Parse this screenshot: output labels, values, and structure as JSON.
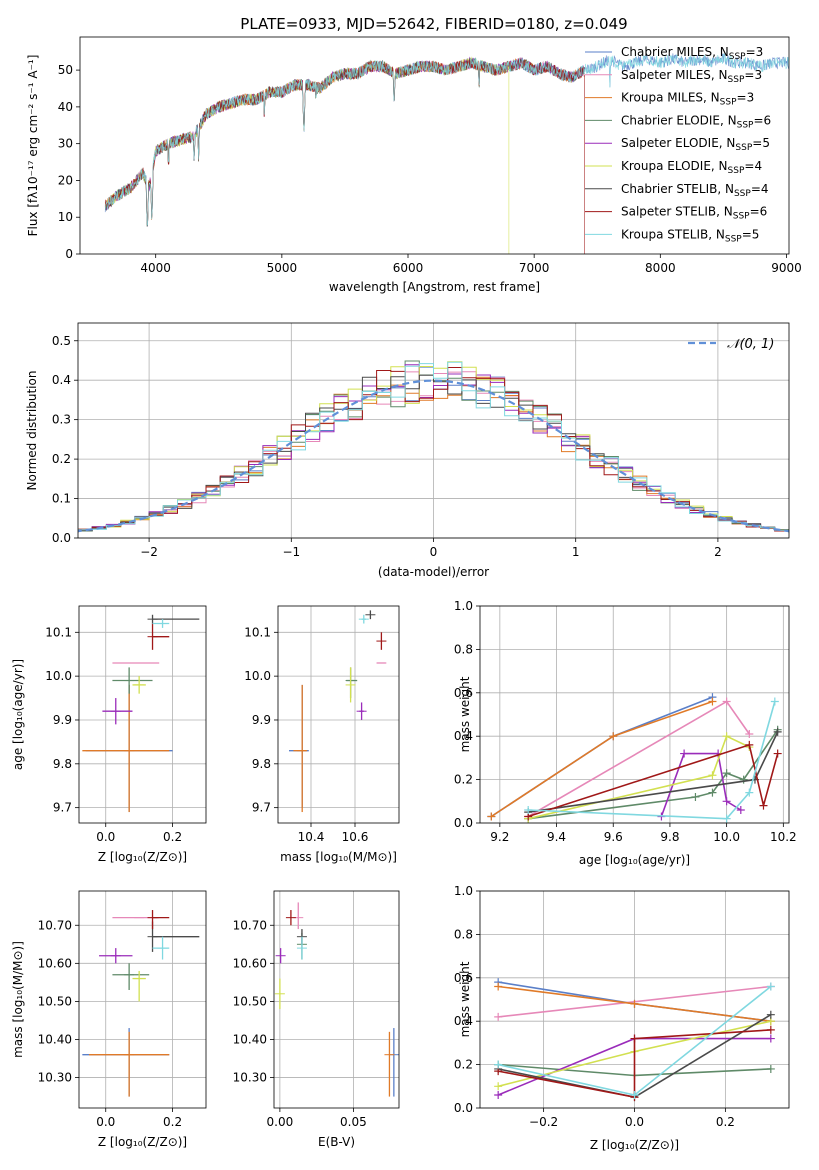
{
  "figure_title": "PLATE=0933, MJD=52642, FIBERID=0180, z=0.049",
  "series": [
    {
      "name": "Chabrier MILES, N",
      "sub": "SSP",
      "suffix": "=3",
      "color": "#5a7fc8"
    },
    {
      "name": "Salpeter MILES, N",
      "sub": "SSP",
      "suffix": "=3",
      "color": "#e688b8"
    },
    {
      "name": "Kroupa MILES, N",
      "sub": "SSP",
      "suffix": "=3",
      "color": "#e07a28"
    },
    {
      "name": "Chabrier ELODIE, N",
      "sub": "SSP",
      "suffix": "=6",
      "color": "#5f8a68"
    },
    {
      "name": "Salpeter ELODIE, N",
      "sub": "SSP",
      "suffix": "=5",
      "color": "#9a2cba"
    },
    {
      "name": "Kroupa ELODIE, N",
      "sub": "SSP",
      "suffix": "=4",
      "color": "#d2e050"
    },
    {
      "name": "Chabrier STELIB, N",
      "sub": "SSP",
      "suffix": "=4",
      "color": "#4a4a4a"
    },
    {
      "name": "Salpeter STELIB, N",
      "sub": "SSP",
      "suffix": "=6",
      "color": "#a01818"
    },
    {
      "name": "Kroupa STELIB, N",
      "sub": "SSP",
      "suffix": "=5",
      "color": "#80d8e0"
    }
  ],
  "chart_data": [
    {
      "id": "spectrum",
      "type": "line",
      "xlabel": "wavelength [Angstrom, rest frame]",
      "ylabel": "Flux [fλ10⁻¹⁷ erg cm⁻² s⁻¹ A⁻¹]",
      "xlim": [
        3400,
        9020
      ],
      "ylim": [
        0,
        59
      ],
      "xticks": [
        4000,
        5000,
        6000,
        7000,
        8000,
        9000
      ],
      "yticks": [
        0,
        10,
        20,
        30,
        40,
        50
      ],
      "continuum": [
        [
          3600,
          13
        ],
        [
          3700,
          16
        ],
        [
          3800,
          18
        ],
        [
          3900,
          22
        ],
        [
          3950,
          18
        ],
        [
          4000,
          28
        ],
        [
          4100,
          30
        ],
        [
          4200,
          31
        ],
        [
          4300,
          32
        ],
        [
          4400,
          38
        ],
        [
          4500,
          40
        ],
        [
          4600,
          41
        ],
        [
          4700,
          42
        ],
        [
          4800,
          42
        ],
        [
          4900,
          44
        ],
        [
          5000,
          44
        ],
        [
          5100,
          46
        ],
        [
          5200,
          46
        ],
        [
          5300,
          45
        ],
        [
          5400,
          48
        ],
        [
          5500,
          49
        ],
        [
          5600,
          49
        ],
        [
          5700,
          51
        ],
        [
          5800,
          51
        ],
        [
          5900,
          49
        ],
        [
          6000,
          50
        ],
        [
          6100,
          51
        ],
        [
          6200,
          51
        ],
        [
          6300,
          50
        ],
        [
          6400,
          51
        ],
        [
          6500,
          52
        ],
        [
          6600,
          51
        ],
        [
          6700,
          50
        ],
        [
          6800,
          51
        ],
        [
          6900,
          52
        ],
        [
          7000,
          50
        ],
        [
          7100,
          51
        ],
        [
          7200,
          49
        ],
        [
          7300,
          48
        ],
        [
          7400,
          50
        ],
        [
          7500,
          51
        ],
        [
          7600,
          53
        ],
        [
          7700,
          51
        ],
        [
          7800,
          52
        ],
        [
          7900,
          53
        ],
        [
          8000,
          52
        ],
        [
          8100,
          53
        ],
        [
          8200,
          52
        ],
        [
          8300,
          53
        ],
        [
          8400,
          52
        ],
        [
          8500,
          53
        ],
        [
          8600,
          52
        ],
        [
          8700,
          52
        ],
        [
          8800,
          51
        ],
        [
          8900,
          52
        ]
      ],
      "absorption_lines": [
        [
          3934,
          5
        ],
        [
          3969,
          8
        ],
        [
          4102,
          22
        ],
        [
          4305,
          24
        ],
        [
          4340,
          25
        ],
        [
          4861,
          36
        ],
        [
          5175,
          32
        ],
        [
          5270,
          40
        ],
        [
          5890,
          39
        ],
        [
          6563,
          44
        ],
        [
          7600,
          45
        ]
      ]
    },
    {
      "id": "residual_hist",
      "type": "bar",
      "xlabel": "(data-model)/error",
      "ylabel": "Normed distribution",
      "xlim": [
        -2.5,
        2.5
      ],
      "ylim": [
        0,
        0.545
      ],
      "xticks": [
        -2,
        -1,
        0,
        1,
        2
      ],
      "yticks": [
        0.0,
        0.1,
        0.2,
        0.3,
        0.4,
        0.5
      ],
      "bin_width": 0.1,
      "reference": {
        "name": "𝒩(0, 1)",
        "color": "#6090d8",
        "mean": 0,
        "sigma": 1
      }
    },
    {
      "id": "age_vs_Z",
      "type": "scatter",
      "xlabel": "Z [log₁₀(Z/Z⊙)]",
      "ylabel": "age  [log₁₀(age/yr)]",
      "xlim": [
        -0.08,
        0.3
      ],
      "ylim": [
        9.665,
        10.16
      ],
      "xticks": [
        0.0,
        0.2
      ],
      "yticks": [
        9.7,
        9.8,
        9.9,
        10.0,
        10.1
      ],
      "points": [
        {
          "x": 0.07,
          "y": 9.83,
          "xerr": [
            0.13,
            0.13
          ],
          "yerr": [
            0.14,
            0.15
          ],
          "s": 0
        },
        {
          "x": 0.1,
          "y": 10.03,
          "xerr": [
            0.08,
            0.06
          ],
          "yerr": [
            0.0,
            0.0
          ],
          "s": 1
        },
        {
          "x": 0.07,
          "y": 9.83,
          "xerr": [
            0.14,
            0.12
          ],
          "yerr": [
            0.14,
            0.15
          ],
          "s": 2
        },
        {
          "x": 0.07,
          "y": 9.99,
          "xerr": [
            0.05,
            0.07
          ],
          "yerr": [
            0.03,
            0.03
          ],
          "s": 3
        },
        {
          "x": 0.03,
          "y": 9.92,
          "xerr": [
            0.04,
            0.05
          ],
          "yerr": [
            0.03,
            0.03
          ],
          "s": 4
        },
        {
          "x": 0.1,
          "y": 9.98,
          "xerr": [
            0.02,
            0.02
          ],
          "yerr": [
            0.02,
            0.02
          ],
          "s": 5
        },
        {
          "x": 0.14,
          "y": 10.13,
          "xerr": [
            0.0,
            0.14
          ],
          "yerr": [
            0.01,
            0.01
          ],
          "s": 6
        },
        {
          "x": 0.14,
          "y": 10.09,
          "xerr": [
            0.0,
            0.05
          ],
          "yerr": [
            0.03,
            0.03
          ],
          "s": 7
        },
        {
          "x": 0.17,
          "y": 10.12,
          "xerr": [
            0.03,
            0.02
          ],
          "yerr": [
            0.01,
            0.01
          ],
          "s": 8
        }
      ]
    },
    {
      "id": "age_vs_mass",
      "type": "scatter",
      "xlabel": "mass [log₁₀(M/M⊙)]",
      "ylabel": "",
      "xlim": [
        10.25,
        10.8
      ],
      "ylim": [
        9.665,
        10.16
      ],
      "xticks": [
        10.4,
        10.6
      ],
      "yticks": [
        9.7,
        9.8,
        9.9,
        10.0,
        10.1
      ],
      "points": [
        {
          "x": 10.36,
          "y": 9.83,
          "xerr": [
            0.06,
            0.03
          ],
          "yerr": [
            0.13,
            0.15
          ],
          "s": 0
        },
        {
          "x": 10.72,
          "y": 10.03,
          "xerr": [
            0.02,
            0.02
          ],
          "yerr": [
            0.0,
            0.0
          ],
          "s": 1
        },
        {
          "x": 10.36,
          "y": 9.83,
          "xerr": [
            0.04,
            0.02
          ],
          "yerr": [
            0.14,
            0.15
          ],
          "s": 2
        },
        {
          "x": 10.58,
          "y": 9.99,
          "xerr": [
            0.02,
            0.03
          ],
          "yerr": [
            0.04,
            0.03
          ],
          "s": 3
        },
        {
          "x": 10.63,
          "y": 9.92,
          "xerr": [
            0.01,
            0.01
          ],
          "yerr": [
            0.02,
            0.02
          ],
          "s": 4
        },
        {
          "x": 10.58,
          "y": 9.98,
          "xerr": [
            0.0,
            0.0
          ],
          "yerr": [
            0.04,
            0.04
          ],
          "s": 5
        },
        {
          "x": 10.67,
          "y": 10.14,
          "xerr": [
            0.0,
            0.0
          ],
          "yerr": [
            0.01,
            0.01
          ],
          "s": 6
        },
        {
          "x": 10.72,
          "y": 10.08,
          "xerr": [
            0.0,
            0.0
          ],
          "yerr": [
            0.02,
            0.02
          ],
          "s": 7
        },
        {
          "x": 10.64,
          "y": 10.13,
          "xerr": [
            0.01,
            0.01
          ],
          "yerr": [
            0.01,
            0.01
          ],
          "s": 8
        }
      ]
    },
    {
      "id": "massweight_vs_age",
      "type": "line",
      "xlabel": "age  [log₁₀(age/yr)]",
      "ylabel": "mass weight",
      "xlim": [
        9.13,
        10.22
      ],
      "ylim": [
        0,
        1
      ],
      "xticks": [
        9.2,
        9.4,
        9.6,
        9.8,
        10.0,
        10.2
      ],
      "yticks": [
        0.0,
        0.2,
        0.4,
        0.6,
        0.8,
        1.0
      ],
      "lines": [
        {
          "s": 0,
          "x": [
            9.17,
            9.6,
            9.95
          ],
          "y": [
            0.03,
            0.4,
            0.58
          ]
        },
        {
          "s": 1,
          "x": [
            9.3,
            10.0,
            10.08
          ],
          "y": [
            0.03,
            0.56,
            0.41
          ]
        },
        {
          "s": 2,
          "x": [
            9.17,
            9.6,
            9.95
          ],
          "y": [
            0.03,
            0.4,
            0.56
          ]
        },
        {
          "s": 3,
          "x": [
            9.3,
            9.89,
            9.95,
            10.0,
            10.06,
            10.18
          ],
          "y": [
            0.02,
            0.12,
            0.14,
            0.23,
            0.2,
            0.43
          ]
        },
        {
          "s": 4,
          "x": [
            9.77,
            9.85,
            9.97,
            10.0,
            10.05
          ],
          "y": [
            0.03,
            0.32,
            0.32,
            0.1,
            0.06
          ]
        },
        {
          "s": 5,
          "x": [
            9.3,
            9.95,
            10.0,
            10.08
          ],
          "y": [
            0.02,
            0.22,
            0.4,
            0.35
          ]
        },
        {
          "s": 6,
          "x": [
            9.3,
            10.1,
            10.18
          ],
          "y": [
            0.05,
            0.2,
            0.42
          ]
        },
        {
          "s": 7,
          "x": [
            9.3,
            10.08,
            10.13,
            10.18
          ],
          "y": [
            0.03,
            0.36,
            0.08,
            0.32
          ]
        },
        {
          "s": 8,
          "x": [
            9.3,
            10.0,
            10.08,
            10.17
          ],
          "y": [
            0.06,
            0.02,
            0.14,
            0.56
          ]
        }
      ]
    },
    {
      "id": "mass_vs_Z",
      "type": "scatter",
      "xlabel": "Z [log₁₀(Z/Z⊙)]",
      "ylabel": "mass [log₁₀(M/M⊙)]",
      "xlim": [
        -0.08,
        0.3
      ],
      "ylim": [
        10.22,
        10.79
      ],
      "xticks": [
        0.0,
        0.2
      ],
      "yticks": [
        10.3,
        10.4,
        10.5,
        10.6,
        10.7
      ],
      "points": [
        {
          "x": 0.07,
          "y": 10.36,
          "xerr": [
            0.14,
            0.12
          ],
          "yerr": [
            0.11,
            0.07
          ],
          "s": 0
        },
        {
          "x": 0.1,
          "y": 10.72,
          "xerr": [
            0.08,
            0.06
          ],
          "yerr": [
            0.0,
            0.0
          ],
          "s": 1
        },
        {
          "x": 0.07,
          "y": 10.36,
          "xerr": [
            0.12,
            0.12
          ],
          "yerr": [
            0.11,
            0.06
          ],
          "s": 2
        },
        {
          "x": 0.07,
          "y": 10.57,
          "xerr": [
            0.05,
            0.06
          ],
          "yerr": [
            0.04,
            0.03
          ],
          "s": 3
        },
        {
          "x": 0.03,
          "y": 10.62,
          "xerr": [
            0.05,
            0.05
          ],
          "yerr": [
            0.02,
            0.02
          ],
          "s": 4
        },
        {
          "x": 0.1,
          "y": 10.56,
          "xerr": [
            0.02,
            0.02
          ],
          "yerr": [
            0.06,
            0.02
          ],
          "s": 5
        },
        {
          "x": 0.14,
          "y": 10.67,
          "xerr": [
            0.0,
            0.14
          ],
          "yerr": [
            0.04,
            0.04
          ],
          "s": 6
        },
        {
          "x": 0.14,
          "y": 10.72,
          "xerr": [
            0.0,
            0.05
          ],
          "yerr": [
            0.03,
            0.02
          ],
          "s": 7
        },
        {
          "x": 0.17,
          "y": 10.64,
          "xerr": [
            0.03,
            0.02
          ],
          "yerr": [
            0.03,
            0.03
          ],
          "s": 8
        }
      ]
    },
    {
      "id": "mass_vs_ebv",
      "type": "scatter",
      "xlabel": "E(B-V)",
      "ylabel": "",
      "xlim": [
        -0.004,
        0.081
      ],
      "ylim": [
        10.22,
        10.79
      ],
      "xticks": [
        0.0,
        0.05
      ],
      "xticklabels": [
        "0.00",
        "0.05"
      ],
      "yticks": [
        10.3,
        10.4,
        10.5,
        10.6,
        10.7
      ],
      "points": [
        {
          "x": 0.0775,
          "y": 10.36,
          "xerr": [
            0,
            0
          ],
          "yerr": [
            0.11,
            0.07
          ],
          "s": 0
        },
        {
          "x": 0.0125,
          "y": 10.72,
          "xerr": [
            0,
            0
          ],
          "yerr": [
            0.03,
            0.04
          ],
          "s": 1
        },
        {
          "x": 0.0745,
          "y": 10.36,
          "xerr": [
            0,
            0
          ],
          "yerr": [
            0.11,
            0.06
          ],
          "s": 2
        },
        {
          "x": 0.015,
          "y": 10.65,
          "xerr": [
            0,
            0
          ],
          "yerr": [
            0.04,
            0.03
          ],
          "s": 3
        },
        {
          "x": 0.0005,
          "y": 10.62,
          "xerr": [
            0,
            0
          ],
          "yerr": [
            0.02,
            0.02
          ],
          "s": 4
        },
        {
          "x": 0.0,
          "y": 10.52,
          "xerr": [
            0,
            0
          ],
          "yerr": [
            0.04,
            0.04
          ],
          "s": 5
        },
        {
          "x": 0.015,
          "y": 10.67,
          "xerr": [
            0,
            0
          ],
          "yerr": [
            0.02,
            0.02
          ],
          "s": 6
        },
        {
          "x": 0.0075,
          "y": 10.72,
          "xerr": [
            0,
            0
          ],
          "yerr": [
            0.02,
            0.02
          ],
          "s": 7
        },
        {
          "x": 0.015,
          "y": 10.64,
          "xerr": [
            0,
            0
          ],
          "yerr": [
            0.03,
            0.03
          ],
          "s": 8
        }
      ]
    },
    {
      "id": "massweight_vs_Z",
      "type": "line",
      "xlabel": "Z [log₁₀(Z/Z⊙)]",
      "ylabel": "mass weight",
      "xlim": [
        -0.34,
        0.34
      ],
      "ylim": [
        0,
        1
      ],
      "xticks": [
        -0.2,
        0.0,
        0.2
      ],
      "yticks": [
        0.0,
        0.2,
        0.4,
        0.6,
        0.8,
        1.0
      ],
      "lines": [
        {
          "s": 0,
          "x": [
            -0.3,
            0.0,
            0.3
          ],
          "y": [
            0.58,
            0.48,
            0.4
          ]
        },
        {
          "s": 1,
          "x": [
            -0.3,
            0.3
          ],
          "y": [
            0.42,
            0.56
          ]
        },
        {
          "s": 2,
          "x": [
            -0.3,
            0.0,
            0.3
          ],
          "y": [
            0.56,
            0.48,
            0.4
          ]
        },
        {
          "s": 3,
          "x": [
            -0.3,
            0.0,
            0.3
          ],
          "y": [
            0.2,
            0.15,
            0.18
          ]
        },
        {
          "s": 4,
          "x": [
            -0.3,
            0.0,
            0.3
          ],
          "y": [
            0.06,
            0.32,
            0.32
          ]
        },
        {
          "s": 5,
          "x": [
            -0.3,
            0.0,
            0.3
          ],
          "y": [
            0.1,
            0.26,
            0.4
          ]
        },
        {
          "s": 6,
          "x": [
            -0.3,
            0.0,
            0.3
          ],
          "y": [
            0.18,
            0.05,
            0.43
          ]
        },
        {
          "s": 7,
          "x": [
            -0.3,
            0.0,
            0.0,
            0.3
          ],
          "y": [
            0.17,
            0.05,
            0.32,
            0.36
          ]
        },
        {
          "s": 8,
          "x": [
            -0.3,
            0.0,
            0.3
          ],
          "y": [
            0.2,
            0.06,
            0.56
          ]
        }
      ]
    }
  ]
}
